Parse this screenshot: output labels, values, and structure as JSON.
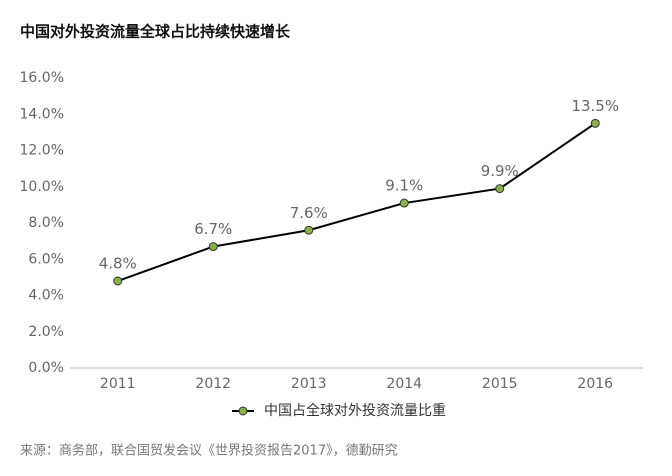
{
  "chart_data": {
    "type": "line",
    "title": "中国对外投资流量全球占比持续快速增长",
    "categories": [
      "2011",
      "2012",
      "2013",
      "2014",
      "2015",
      "2016"
    ],
    "series": [
      {
        "name": "中国占全球对外投资流量比重",
        "color": "#000000",
        "marker_color": "#8ab04a",
        "values": [
          4.8,
          6.7,
          7.6,
          9.1,
          9.9,
          13.5
        ],
        "value_labels": [
          "4.8%",
          "6.7%",
          "7.6%",
          "9.1%",
          "9.9%",
          "13.5%"
        ]
      }
    ],
    "ylim": [
      0,
      16
    ],
    "yticks": [
      {
        "value": 0,
        "label": "0.0%"
      },
      {
        "value": 2,
        "label": "2.0%"
      },
      {
        "value": 4,
        "label": "4.0%"
      },
      {
        "value": 6,
        "label": "6.0%"
      },
      {
        "value": 8,
        "label": "8.0%"
      },
      {
        "value": 10,
        "label": "10.0%"
      },
      {
        "value": 12,
        "label": "12.0%"
      },
      {
        "value": 14,
        "label": "14.0%"
      },
      {
        "value": 16,
        "label": "16.0%"
      }
    ],
    "grid": false,
    "legend": "bottom",
    "source": "来源：商务部，联合国贸发会议《世界投资报告2017》，德勤研究"
  }
}
